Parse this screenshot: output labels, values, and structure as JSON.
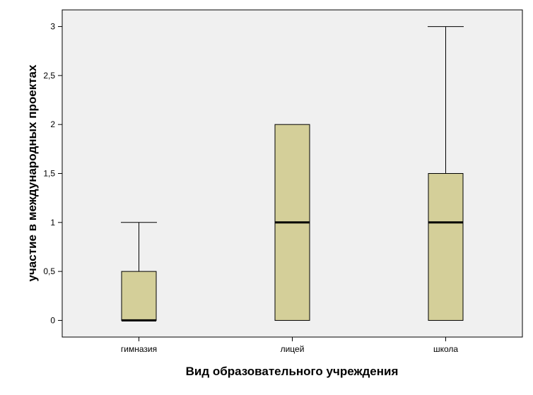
{
  "chart_data": {
    "type": "boxplot",
    "title": "",
    "xlabel": "Вид образовательного учреждения",
    "ylabel": "участие в международных проектах",
    "ylim": [
      -0.17,
      3.17
    ],
    "y_ticks": [
      0,
      0.5,
      1,
      1.5,
      2,
      2.5,
      3
    ],
    "y_tick_labels": [
      "0",
      "0,5",
      "1",
      "1,5",
      "2",
      "2,5",
      "3"
    ],
    "categories": [
      "гимназия",
      "лицей",
      "школа"
    ],
    "boxes": [
      {
        "category": "гимназия",
        "min": 0,
        "q1": 0,
        "median": 0,
        "q3": 0.5,
        "max": 1
      },
      {
        "category": "лицей",
        "min": 0,
        "q1": 0,
        "median": 1,
        "q3": 2,
        "max": 2
      },
      {
        "category": "школа",
        "min": 0,
        "q1": 0,
        "median": 1,
        "q3": 1.5,
        "max": 3
      }
    ],
    "grid": false,
    "colors": {
      "plot_background": "#f0f0f0",
      "box_fill": "#d4cf99",
      "line": "#000000"
    }
  }
}
